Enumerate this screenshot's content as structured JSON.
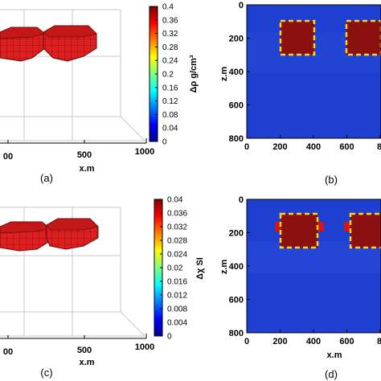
{
  "panels": [
    {
      "id": "a",
      "kind": "3d",
      "label": "(a)",
      "xlabel": "x.m",
      "x_ticks": [
        "00",
        "500",
        "1000"
      ],
      "colorbar": {
        "label": "Δρ g/cm³",
        "min": 0,
        "max": 0.4,
        "ticks": [
          "0.4",
          "0.36",
          "0.32",
          "0.28",
          "0.24",
          "0.2",
          "0.16",
          "0.12",
          "0.08",
          "0.04",
          "0"
        ]
      }
    },
    {
      "id": "b",
      "kind": "section",
      "label": "(b)",
      "ylabel": "z.m",
      "x_ticks": [
        "0",
        "200",
        "400",
        "600",
        "8"
      ],
      "y_ticks": [
        "0",
        "200",
        "400",
        "600",
        "800"
      ]
    },
    {
      "id": "c",
      "kind": "3d",
      "label": "(c)",
      "xlabel": "x.m",
      "x_ticks": [
        "00",
        "500",
        "1000"
      ],
      "colorbar": {
        "label": "Δχ SI",
        "min": 0,
        "max": 0.04,
        "ticks": [
          "0.04",
          "0.036",
          "0.032",
          "0.028",
          "0.024",
          "0.02",
          "0.016",
          "0.012",
          "0.008",
          "0.004",
          "0"
        ]
      }
    },
    {
      "id": "d",
      "kind": "section",
      "label": "(d)",
      "ylabel": "z.m",
      "xlabel": "x.m",
      "x_ticks": [
        "0",
        "200",
        "400",
        "600",
        "8"
      ],
      "y_ticks": [
        "0",
        "200",
        "400",
        "600",
        "800"
      ]
    }
  ],
  "colors": {
    "background_field": "#1f3fd0",
    "anomaly": "#8b1010",
    "block_red": "#e02020",
    "outline_dash": "#ffd21a"
  }
}
